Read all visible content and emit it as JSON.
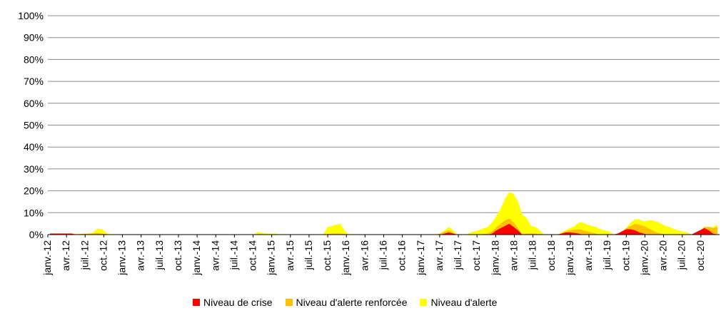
{
  "chart_data": {
    "type": "area",
    "stacked": true,
    "ylim": [
      0,
      100
    ],
    "y_ticks": [
      "0%",
      "10%",
      "20%",
      "30%",
      "40%",
      "50%",
      "60%",
      "70%",
      "80%",
      "90%",
      "100%"
    ],
    "grid": "horizontal",
    "legend_position": "bottom",
    "x_tick_labels": [
      "janv.-12",
      "avr.-12",
      "juil.-12",
      "oct.-12",
      "janv.-13",
      "avr.-13",
      "juil.-13",
      "oct.-13",
      "janv.-14",
      "avr.-14",
      "juil.-14",
      "oct.-14",
      "janv.-15",
      "avr.-15",
      "juil.-15",
      "oct.-15",
      "janv.-16",
      "avr.-16",
      "juil.-16",
      "oct.-16",
      "janv.-17",
      "avr.-17",
      "juil.-17",
      "oct.-17",
      "janv.-18",
      "avr.-18",
      "juil.-18",
      "oct.-18",
      "janv.-19",
      "avr.-19",
      "juil.-19",
      "oct.-19",
      "janv.-20",
      "avr.-20",
      "juil.-20",
      "oct.-20"
    ],
    "series": [
      {
        "name": "Niveau de crise",
        "color": "#ff0000",
        "values": [
          0.5,
          0.5,
          0.5,
          0.5,
          0.5,
          0.5,
          0,
          0,
          0,
          0,
          0,
          0.3,
          0,
          0,
          0,
          0,
          0,
          0,
          0,
          0,
          0,
          0,
          0,
          0,
          0,
          0,
          0,
          0,
          0,
          0,
          0,
          0,
          0,
          0,
          0,
          0,
          0,
          0,
          0,
          0,
          0,
          0,
          0,
          0,
          0,
          0,
          0,
          0,
          0,
          0,
          0,
          0,
          0,
          0,
          0,
          0,
          0,
          0,
          0,
          0,
          0,
          0,
          0,
          0,
          0,
          0,
          0,
          0,
          0,
          0,
          0,
          0,
          0,
          0,
          0,
          0,
          0,
          0,
          0,
          0,
          0,
          0,
          0,
          0,
          0,
          0,
          0,
          0,
          0,
          0,
          0,
          0.5,
          1,
          0.5,
          0,
          0,
          0,
          0,
          0,
          0,
          0,
          0,
          0.5,
          2,
          3,
          4,
          5,
          3.5,
          2,
          0,
          0,
          0,
          0,
          0,
          0,
          0,
          0,
          0,
          0.5,
          1,
          1,
          0.8,
          0.5,
          0,
          0,
          0,
          0,
          0,
          0,
          0,
          0,
          0.5,
          1.5,
          2.5,
          2.5,
          2,
          1,
          0.5,
          0,
          0,
          0,
          0,
          0,
          0,
          0,
          0,
          0,
          0,
          0,
          1,
          2,
          3,
          2,
          0.5,
          0
        ]
      },
      {
        "name": "Niveau d'alerte renforcée",
        "color": "#ffc000",
        "values": [
          0,
          0,
          0,
          0,
          0,
          0,
          0.2,
          0.3,
          0.4,
          0.5,
          0.5,
          0.5,
          0.5,
          0.3,
          0,
          0,
          0,
          0,
          0,
          0,
          0,
          0,
          0,
          0,
          0,
          0,
          0,
          0,
          0,
          0,
          0,
          0,
          0,
          0,
          0,
          0,
          0,
          0,
          0,
          0,
          0,
          0,
          0,
          0,
          0,
          0,
          0,
          0,
          0.3,
          0.3,
          0,
          0,
          0,
          0,
          0,
          0,
          0,
          0,
          0,
          0,
          0,
          0,
          0,
          0,
          0.3,
          0.5,
          0.5,
          0.5,
          0.3,
          0,
          0,
          0,
          0,
          0,
          0,
          0,
          0,
          0,
          0,
          0,
          0,
          0,
          0,
          0,
          0,
          0,
          0,
          0,
          0,
          0,
          0.5,
          0.8,
          1,
          0.5,
          0,
          0,
          0,
          0,
          0,
          0,
          0.3,
          0.5,
          1,
          1.5,
          2,
          2.5,
          2.5,
          2,
          1,
          0,
          0.5,
          0.5,
          0.5,
          0,
          0,
          0,
          0,
          0,
          0,
          0.5,
          1,
          1.5,
          2,
          2,
          1.5,
          1,
          0.5,
          0,
          0,
          0,
          0,
          0,
          0,
          0.5,
          1.5,
          3,
          3.5,
          3.5,
          3,
          2,
          1,
          0.5,
          0,
          0,
          0,
          0,
          0,
          0,
          0,
          0,
          0,
          0.5,
          1.5,
          2.5,
          3.5,
          2,
          1,
          0
        ]
      },
      {
        "name": "Niveau d'alerte",
        "color": "#ffff00",
        "values": [
          0,
          0,
          0,
          0,
          0,
          0,
          0,
          0,
          0,
          0,
          0.5,
          2,
          2,
          0.5,
          0,
          0,
          0,
          0,
          0,
          0,
          0,
          0,
          0,
          0,
          0,
          0,
          0,
          0,
          0,
          0,
          0,
          0,
          0,
          0,
          0,
          0,
          0,
          0,
          0,
          0,
          0,
          0,
          0,
          0,
          0,
          0,
          0,
          0,
          1,
          0.5,
          0.5,
          0.5,
          0.5,
          0,
          0,
          0,
          0,
          0,
          0,
          0,
          0,
          0,
          0,
          0,
          3,
          3.5,
          4,
          4.5,
          1.5,
          0,
          0,
          0,
          0,
          0,
          0,
          0,
          0,
          0,
          0,
          0,
          0,
          0,
          0,
          0,
          0,
          0,
          0,
          0,
          0,
          0,
          0,
          0.5,
          1.5,
          1,
          0,
          0,
          0,
          1,
          1.5,
          2,
          2.5,
          3,
          4,
          5,
          7,
          10,
          12,
          13,
          12,
          9,
          7,
          3.5,
          3,
          2,
          0,
          0,
          0,
          0,
          0.5,
          0.5,
          1,
          1.5,
          3,
          3.5,
          3,
          3,
          3,
          2.5,
          2,
          1.5,
          0,
          0,
          0,
          0,
          1.5,
          2,
          2.5,
          2,
          3.5,
          4.5,
          5,
          4.5,
          4,
          3.5,
          2.5,
          2,
          1.5,
          1,
          0,
          0,
          0,
          0,
          0,
          0.5,
          1,
          4.5,
          5,
          3.5,
          3,
          2,
          1,
          0.5,
          0
        ]
      }
    ]
  }
}
